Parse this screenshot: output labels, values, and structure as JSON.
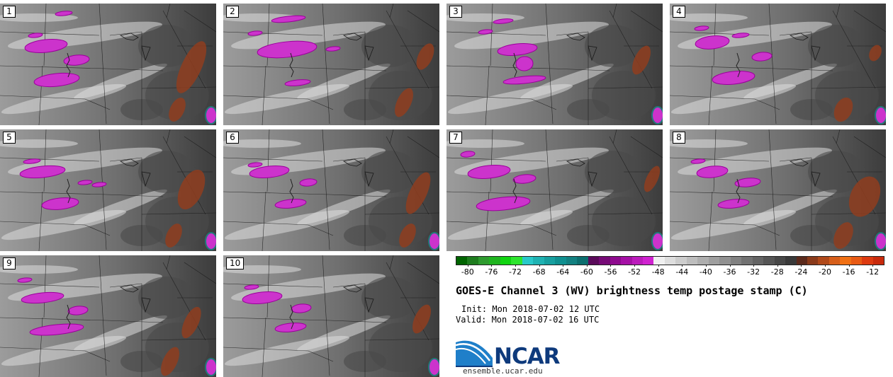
{
  "figure": {
    "title": "GOES-E Channel 3 (WV) brightness temp postage stamp (C)",
    "init": "Init: Mon 2018-07-02 12 UTC",
    "valid": "Valid: Mon 2018-07-02 16 UTC",
    "logo_text": "NCAR",
    "logo_url": "ensemble.ucar.edu"
  },
  "colors": {
    "cold_magenta": "#cc33cc",
    "magenta_edge": "#9a009a",
    "warm_brown": "#8f3d1f",
    "dark_gray": "#3c3c3c",
    "mid_gray": "#6e6e6e",
    "light_gray": "#9c9c9c",
    "whiteish": "#dcdcdc",
    "border_line": "#1a1a1a",
    "ncar_blue": "#0e3a7c"
  },
  "panels": [
    {
      "label": "1"
    },
    {
      "label": "2"
    },
    {
      "label": "3"
    },
    {
      "label": "4"
    },
    {
      "label": "5"
    },
    {
      "label": "6"
    },
    {
      "label": "7"
    },
    {
      "label": "8"
    },
    {
      "label": "9"
    },
    {
      "label": "10"
    }
  ],
  "colorbar": {
    "colors": [
      "#006400",
      "#1e7c1e",
      "#2e9a2e",
      "#1fb41f",
      "#11d411",
      "#2ee52e",
      "#29c9c9",
      "#1fb2b2",
      "#179f9f",
      "#0f8f8f",
      "#128080",
      "#0c6e6e",
      "#5a0a5a",
      "#760a76",
      "#8e0a8e",
      "#a510a5",
      "#bb1bbb",
      "#d022d0",
      "#f0f0f0",
      "#dedede",
      "#cdcdcd",
      "#bdbdbd",
      "#aeaeae",
      "#9f9f9f",
      "#909090",
      "#818181",
      "#727272",
      "#646464",
      "#555555",
      "#474747",
      "#393939",
      "#5b2a1c",
      "#8a3a1a",
      "#b0491a",
      "#d65e1a",
      "#f07014",
      "#e85a14",
      "#dd3a10",
      "#c82a0c"
    ],
    "tick_labels": [
      "-80",
      "-76",
      "-72",
      "-68",
      "-64",
      "-60",
      "-56",
      "-52",
      "-48",
      "-44",
      "-40",
      "-36",
      "-32",
      "-28",
      "-24",
      "-20",
      "-16",
      "-12"
    ],
    "tick_values": [
      -80,
      -76,
      -72,
      -68,
      -64,
      -60,
      -56,
      -52,
      -48,
      -44,
      -40,
      -36,
      -32,
      -28,
      -24,
      -20,
      -16,
      -12
    ],
    "range": [
      -82,
      -10
    ]
  }
}
